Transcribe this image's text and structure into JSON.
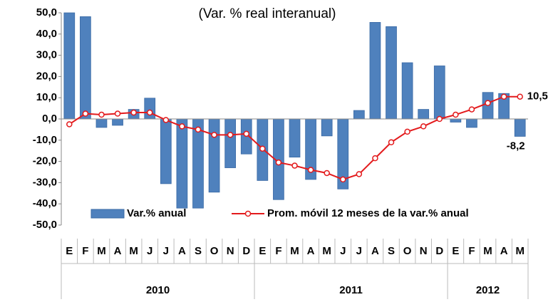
{
  "chart_data": {
    "type": "bar_line",
    "title": "(Var. % real interanual)",
    "categories": [
      "E",
      "F",
      "M",
      "A",
      "M",
      "J",
      "J",
      "A",
      "S",
      "O",
      "N",
      "D",
      "E",
      "F",
      "M",
      "A",
      "M",
      "J",
      "J",
      "A",
      "S",
      "O",
      "N",
      "D",
      "E",
      "F",
      "M",
      "A",
      "M"
    ],
    "groups": [
      {
        "label": "2010",
        "span": 12
      },
      {
        "label": "2011",
        "span": 12
      },
      {
        "label": "2012",
        "span": 5
      }
    ],
    "series": [
      {
        "name": "Var.% anual",
        "type": "bar",
        "color": "#4f81bd",
        "values": [
          50,
          48.2,
          -4,
          -3,
          4.5,
          9.8,
          -30.5,
          -42,
          -42,
          -34.5,
          -23,
          -16.5,
          -29,
          -38,
          -18,
          -28.5,
          -8,
          -33,
          4,
          45.5,
          43.5,
          26.5,
          4.5,
          25,
          -1.5,
          -4,
          12.5,
          12,
          -8.2
        ],
        "value_labels": [
          null,
          null,
          null,
          null,
          null,
          null,
          null,
          null,
          null,
          null,
          null,
          null,
          null,
          null,
          null,
          null,
          null,
          null,
          null,
          null,
          null,
          null,
          null,
          null,
          null,
          null,
          null,
          null,
          "-8,2"
        ]
      },
      {
        "name": "Prom. móvil 12 meses de la var.% anual",
        "type": "line",
        "color": "#e31a1c",
        "values": [
          -2.5,
          2.5,
          2,
          2.5,
          3,
          3,
          -0.5,
          -3.5,
          -5,
          -7.5,
          -7.5,
          -7,
          -14,
          -20.5,
          -22,
          -24,
          -25.5,
          -28.5,
          -26,
          -18.5,
          -11,
          -6,
          -3.5,
          0,
          2,
          4.5,
          7.5,
          10.5,
          10.5
        ],
        "value_labels": [
          null,
          null,
          null,
          null,
          null,
          null,
          null,
          null,
          null,
          null,
          null,
          null,
          null,
          null,
          null,
          null,
          null,
          null,
          null,
          null,
          null,
          null,
          null,
          null,
          null,
          null,
          null,
          null,
          "10,5"
        ]
      }
    ],
    "ylim": [
      -50,
      50
    ],
    "yticks": [
      {
        "value": -50,
        "label": "-50,0"
      },
      {
        "value": -40,
        "label": "-40,0"
      },
      {
        "value": -30,
        "label": "-30,0"
      },
      {
        "value": -20,
        "label": "-20,0"
      },
      {
        "value": -10,
        "label": "-10,0"
      },
      {
        "value": 0,
        "label": "0,0"
      },
      {
        "value": 10,
        "label": "10,0"
      },
      {
        "value": 20,
        "label": "20,0"
      },
      {
        "value": 30,
        "label": "30,0"
      },
      {
        "value": 40,
        "label": "40,0"
      },
      {
        "value": 50,
        "label": "50,0"
      }
    ],
    "grid": false,
    "legend": "bottom"
  }
}
